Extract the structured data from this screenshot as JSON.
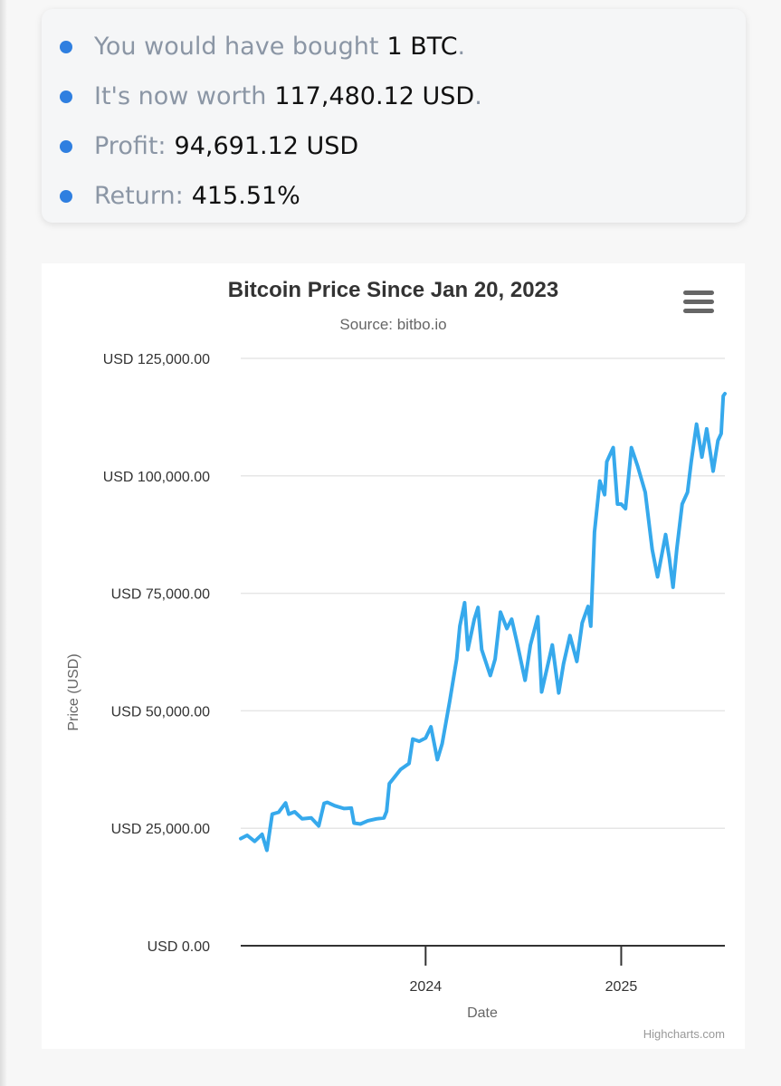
{
  "summary": {
    "items": [
      {
        "label": "You would have bought",
        "value": "1 BTC",
        "suffix": "."
      },
      {
        "label": "It's now worth",
        "value": "117,480.12 USD",
        "suffix": "."
      },
      {
        "label": "Profit:",
        "value": "94,691.12 USD",
        "suffix": ""
      },
      {
        "label": "Return:",
        "value": "415.51%",
        "suffix": ""
      }
    ]
  },
  "colors": {
    "bullet": "#2f7fe0",
    "line": "#36a9ec",
    "grid": "#e6e6e6",
    "axis": "#333333"
  },
  "icons": {
    "menu": "hamburger-menu-icon"
  },
  "chart_data": {
    "type": "line",
    "title": "Bitcoin Price Since Jan 20, 2023",
    "subtitle": "Source: bitbo.io",
    "xlabel": "Date",
    "ylabel": "Price (USD)",
    "credits": "Highcharts.com",
    "xlim": [
      "2023-01-20",
      "2025-07-14"
    ],
    "ylim": [
      0,
      125000
    ],
    "yticks": [
      {
        "value": 0,
        "label": "USD 0.00"
      },
      {
        "value": 25000,
        "label": "USD 25,000.00"
      },
      {
        "value": 50000,
        "label": "USD 50,000.00"
      },
      {
        "value": 75000,
        "label": "USD 75,000.00"
      },
      {
        "value": 100000,
        "label": "USD 100,000.00"
      },
      {
        "value": 125000,
        "label": "USD 125,000.00"
      }
    ],
    "xticks": [
      {
        "value": "2024-01-01",
        "label": "2024"
      },
      {
        "value": "2025-01-01",
        "label": "2025"
      }
    ],
    "grid": true,
    "legend": false,
    "series": [
      {
        "x": [
          "2023-01-20",
          "2023-02-01",
          "2023-02-15",
          "2023-03-01",
          "2023-03-10",
          "2023-03-20",
          "2023-04-01",
          "2023-04-14",
          "2023-04-20",
          "2023-05-01",
          "2023-05-15",
          "2023-06-01",
          "2023-06-15",
          "2023-06-25",
          "2023-07-01",
          "2023-07-15",
          "2023-08-01",
          "2023-08-15",
          "2023-08-20",
          "2023-09-01",
          "2023-09-15",
          "2023-10-01",
          "2023-10-15",
          "2023-10-20",
          "2023-10-25",
          "2023-11-01",
          "2023-11-15",
          "2023-12-01",
          "2023-12-08",
          "2023-12-20",
          "2024-01-01",
          "2024-01-11",
          "2024-01-23",
          "2024-02-01",
          "2024-02-15",
          "2024-02-28",
          "2024-03-05",
          "2024-03-14",
          "2024-03-20",
          "2024-04-01",
          "2024-04-08",
          "2024-04-15",
          "2024-05-01",
          "2024-05-10",
          "2024-05-20",
          "2024-06-01",
          "2024-06-10",
          "2024-06-20",
          "2024-07-05",
          "2024-07-15",
          "2024-07-29",
          "2024-08-05",
          "2024-08-15",
          "2024-08-25",
          "2024-09-06",
          "2024-09-15",
          "2024-09-27",
          "2024-10-10",
          "2024-10-20",
          "2024-10-31",
          "2024-11-05",
          "2024-11-12",
          "2024-11-22",
          "2024-12-01",
          "2024-12-05",
          "2024-12-17",
          "2024-12-25",
          "2025-01-01",
          "2025-01-09",
          "2025-01-20",
          "2025-02-01",
          "2025-02-15",
          "2025-02-28",
          "2025-03-10",
          "2025-03-25",
          "2025-04-01",
          "2025-04-08",
          "2025-04-15",
          "2025-04-25",
          "2025-05-05",
          "2025-05-12",
          "2025-05-22",
          "2025-06-01",
          "2025-06-10",
          "2025-06-22",
          "2025-07-01",
          "2025-07-07",
          "2025-07-11",
          "2025-07-14"
        ],
        "y": [
          22800,
          23500,
          22200,
          23700,
          20300,
          28000,
          28400,
          30400,
          28000,
          28500,
          27000,
          27200,
          25500,
          30300,
          30500,
          29800,
          29200,
          29300,
          26100,
          25900,
          26600,
          27000,
          27200,
          28600,
          34500,
          35500,
          37500,
          38800,
          44000,
          43500,
          44200,
          46600,
          39600,
          43000,
          52000,
          61000,
          68000,
          73000,
          63000,
          69500,
          72000,
          63000,
          57500,
          61000,
          71000,
          67500,
          69500,
          64500,
          56500,
          64000,
          70000,
          54000,
          59000,
          64000,
          53800,
          60000,
          66000,
          60500,
          68700,
          72200,
          68000,
          88000,
          98900,
          96000,
          103000,
          106000,
          94000,
          94000,
          93000,
          106000,
          102000,
          96500,
          84300,
          78500,
          87500,
          82500,
          76300,
          84500,
          94000,
          96500,
          103000,
          111000,
          104000,
          110000,
          101000,
          107500,
          109000,
          117000,
          117480
        ]
      }
    ]
  }
}
